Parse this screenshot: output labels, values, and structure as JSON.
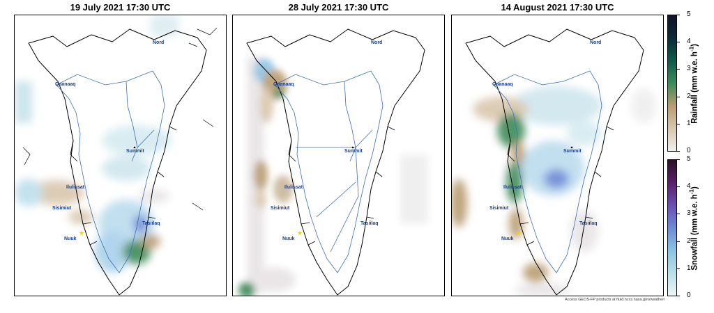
{
  "panels": [
    {
      "title": "19 July 2021 17:30 UTC"
    },
    {
      "title": "28 July 2021 17:30 UTC"
    },
    {
      "title": "14 August 2021 17:30 UTC"
    }
  ],
  "places": {
    "nord": "Nord",
    "qaanaaq": "Qaanaaq",
    "summit": "Summit",
    "ilulissat": "Ilulissat",
    "sisimiut": "Sisimiut",
    "tasiilaq": "Tasiilaq",
    "nuuk": "Nuuk"
  },
  "rainfall_bar": {
    "label": "Rainfall (mm w.e. h",
    "label_sup": "-1",
    "label_end": ")",
    "ticks": [
      "5",
      "4",
      "3",
      "2",
      "1",
      "0"
    ],
    "colors": [
      "#f2eeee",
      "#d9c7ad",
      "#b89b6f",
      "#3c8a5a",
      "#0f5a4a",
      "#0c2b3a",
      "#10132a"
    ]
  },
  "snowfall_bar": {
    "label": "Snowfall (mm w.e. h",
    "label_sup": "-1",
    "label_end": ")",
    "ticks": [
      "5",
      "4",
      "3",
      "2",
      "1",
      "0"
    ],
    "colors": [
      "#eef6f8",
      "#b8dfea",
      "#8cc3e2",
      "#6d8ad6",
      "#6a4fb0",
      "#5a1f6a",
      "#2a0f2a"
    ]
  },
  "credit": "Access GEOS-FP products at fluid.nccs.nasa.gov/weather/"
}
